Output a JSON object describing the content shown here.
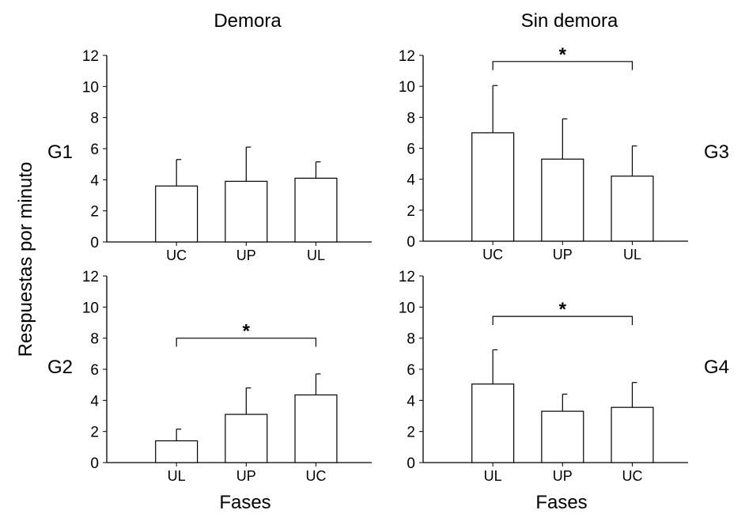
{
  "column_titles": [
    "Demora",
    "Sin demora"
  ],
  "ylabel": "Respuestas por minuto",
  "xlabel": "Fases",
  "chart_data": [
    {
      "type": "bar",
      "group": "G1",
      "column": "Demora",
      "categories": [
        "UC",
        "UP",
        "UL"
      ],
      "values": [
        3.6,
        3.9,
        4.1
      ],
      "error_upper": [
        5.3,
        6.1,
        5.15
      ],
      "ylim": [
        0,
        12
      ],
      "yticks": [
        "0",
        "2",
        "4",
        "6",
        "8",
        "10",
        "12"
      ],
      "significance": null
    },
    {
      "type": "bar",
      "group": "G3",
      "column": "Sin demora",
      "categories": [
        "UC",
        "UP",
        "UL"
      ],
      "values": [
        7.0,
        5.3,
        4.2
      ],
      "error_upper": [
        10.05,
        7.9,
        6.15
      ],
      "ylim": [
        0,
        12
      ],
      "yticks": [
        "0",
        "2",
        "4",
        "6",
        "8",
        "10",
        "12"
      ],
      "significance": {
        "from": "UC",
        "to": "UL",
        "label": "*",
        "level": 11.6
      }
    },
    {
      "type": "bar",
      "group": "G2",
      "column": "Demora",
      "categories": [
        "UL",
        "UP",
        "UC"
      ],
      "values": [
        1.4,
        3.1,
        4.35
      ],
      "error_upper": [
        2.15,
        4.8,
        5.7
      ],
      "ylim": [
        0,
        12
      ],
      "yticks": [
        "0",
        "2",
        "4",
        "6",
        "8",
        "10",
        "12"
      ],
      "significance": {
        "from": "UL",
        "to": "UC",
        "label": "*",
        "level": 8.0
      }
    },
    {
      "type": "bar",
      "group": "G4",
      "column": "Sin demora",
      "categories": [
        "UL",
        "UP",
        "UC"
      ],
      "values": [
        5.05,
        3.3,
        3.55
      ],
      "error_upper": [
        7.25,
        4.4,
        5.15
      ],
      "ylim": [
        0,
        12
      ],
      "yticks": [
        "0",
        "2",
        "4",
        "6",
        "8",
        "10",
        "12"
      ],
      "significance": {
        "from": "UL",
        "to": "UC",
        "label": "*",
        "level": 9.4
      }
    }
  ]
}
